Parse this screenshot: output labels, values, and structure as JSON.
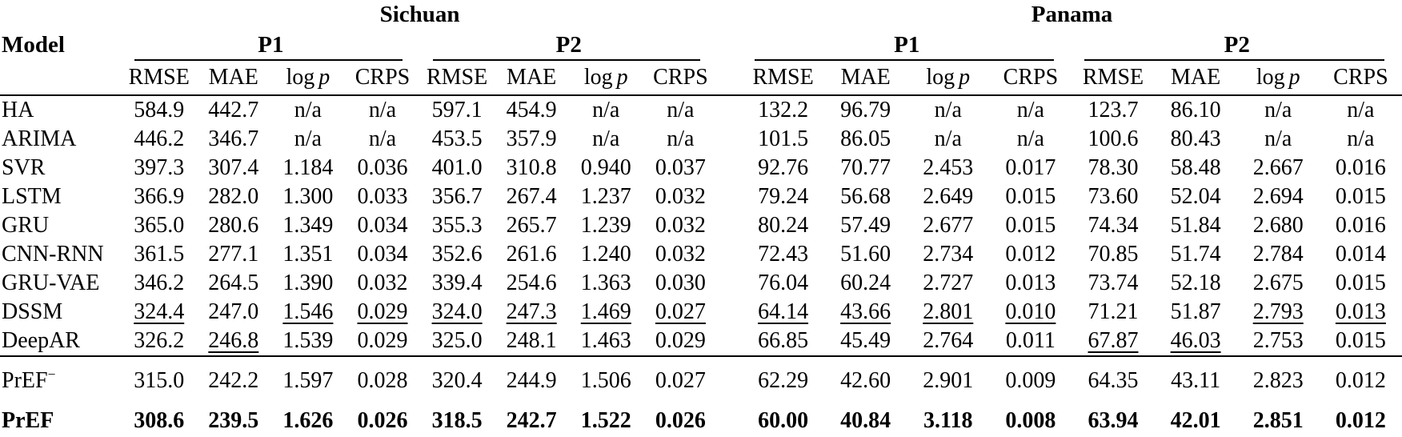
{
  "table": {
    "model_header": "Model",
    "datasets": [
      {
        "label": "Sichuan"
      },
      {
        "label": "Panama"
      }
    ],
    "period_labels": [
      "P1",
      "P2",
      "P1",
      "P2"
    ],
    "metric_labels": [
      {
        "t": "RMSE"
      },
      {
        "t": "MAE"
      },
      {
        "t": "log",
        "it": "p"
      },
      {
        "t": "CRPS"
      }
    ],
    "sections": [
      {
        "rows": [
          {
            "model": "HA",
            "sup": "",
            "bold": false,
            "values": [
              "584.9",
              "442.7",
              "n/a",
              "n/a",
              "597.1",
              "454.9",
              "n/a",
              "n/a",
              "132.2",
              "96.79",
              "n/a",
              "n/a",
              "123.7",
              "86.10",
              "n/a",
              "n/a"
            ],
            "underline": []
          },
          {
            "model": "ARIMA",
            "sup": "",
            "bold": false,
            "values": [
              "446.2",
              "346.7",
              "n/a",
              "n/a",
              "453.5",
              "357.9",
              "n/a",
              "n/a",
              "101.5",
              "86.05",
              "n/a",
              "n/a",
              "100.6",
              "80.43",
              "n/a",
              "n/a"
            ],
            "underline": []
          },
          {
            "model": "SVR",
            "sup": "",
            "bold": false,
            "values": [
              "397.3",
              "307.4",
              "1.184",
              "0.036",
              "401.0",
              "310.8",
              "0.940",
              "0.037",
              "92.76",
              "70.77",
              "2.453",
              "0.017",
              "78.30",
              "58.48",
              "2.667",
              "0.016"
            ],
            "underline": []
          },
          {
            "model": "LSTM",
            "sup": "",
            "bold": false,
            "values": [
              "366.9",
              "282.0",
              "1.300",
              "0.033",
              "356.7",
              "267.4",
              "1.237",
              "0.032",
              "79.24",
              "56.68",
              "2.649",
              "0.015",
              "73.60",
              "52.04",
              "2.694",
              "0.015"
            ],
            "underline": []
          },
          {
            "model": "GRU",
            "sup": "",
            "bold": false,
            "values": [
              "365.0",
              "280.6",
              "1.349",
              "0.034",
              "355.3",
              "265.7",
              "1.239",
              "0.032",
              "80.24",
              "57.49",
              "2.677",
              "0.015",
              "74.34",
              "51.84",
              "2.680",
              "0.016"
            ],
            "underline": []
          },
          {
            "model": "CNN-RNN",
            "sup": "",
            "bold": false,
            "values": [
              "361.5",
              "277.1",
              "1.351",
              "0.034",
              "352.6",
              "261.6",
              "1.240",
              "0.032",
              "72.43",
              "51.60",
              "2.734",
              "0.012",
              "70.85",
              "51.74",
              "2.784",
              "0.014"
            ],
            "underline": []
          },
          {
            "model": "GRU-VAE",
            "sup": "",
            "bold": false,
            "values": [
              "346.2",
              "264.5",
              "1.390",
              "0.032",
              "339.4",
              "254.6",
              "1.363",
              "0.030",
              "76.04",
              "60.24",
              "2.727",
              "0.013",
              "73.74",
              "52.18",
              "2.675",
              "0.015"
            ],
            "underline": []
          },
          {
            "model": "DSSM",
            "sup": "",
            "bold": false,
            "values": [
              "324.4",
              "247.0",
              "1.546",
              "0.029",
              "324.0",
              "247.3",
              "1.469",
              "0.027",
              "64.14",
              "43.66",
              "2.801",
              "0.010",
              "71.21",
              "51.87",
              "2.793",
              "0.013"
            ],
            "underline": [
              0,
              2,
              3,
              4,
              5,
              6,
              7,
              8,
              9,
              10,
              11,
              14,
              15
            ]
          },
          {
            "model": "DeepAR",
            "sup": "",
            "bold": false,
            "values": [
              "326.2",
              "246.8",
              "1.539",
              "0.029",
              "325.0",
              "248.1",
              "1.463",
              "0.029",
              "66.85",
              "45.49",
              "2.764",
              "0.011",
              "67.87",
              "46.03",
              "2.753",
              "0.015"
            ],
            "underline": [
              1,
              12,
              13
            ]
          }
        ]
      },
      {
        "rows": [
          {
            "model": "PrEF",
            "sup": "−",
            "bold": false,
            "values": [
              "315.0",
              "242.2",
              "1.597",
              "0.028",
              "320.4",
              "244.9",
              "1.506",
              "0.027",
              "62.29",
              "42.60",
              "2.901",
              "0.009",
              "64.35",
              "43.11",
              "2.823",
              "0.012"
            ],
            "underline": []
          },
          {
            "model": "PrEF",
            "sup": "",
            "bold": true,
            "values": [
              "308.6",
              "239.5",
              "1.626",
              "0.026",
              "318.5",
              "242.7",
              "1.522",
              "0.026",
              "60.00",
              "40.84",
              "3.118",
              "0.008",
              "63.94",
              "42.01",
              "2.851",
              "0.012"
            ],
            "underline": []
          }
        ]
      }
    ]
  }
}
